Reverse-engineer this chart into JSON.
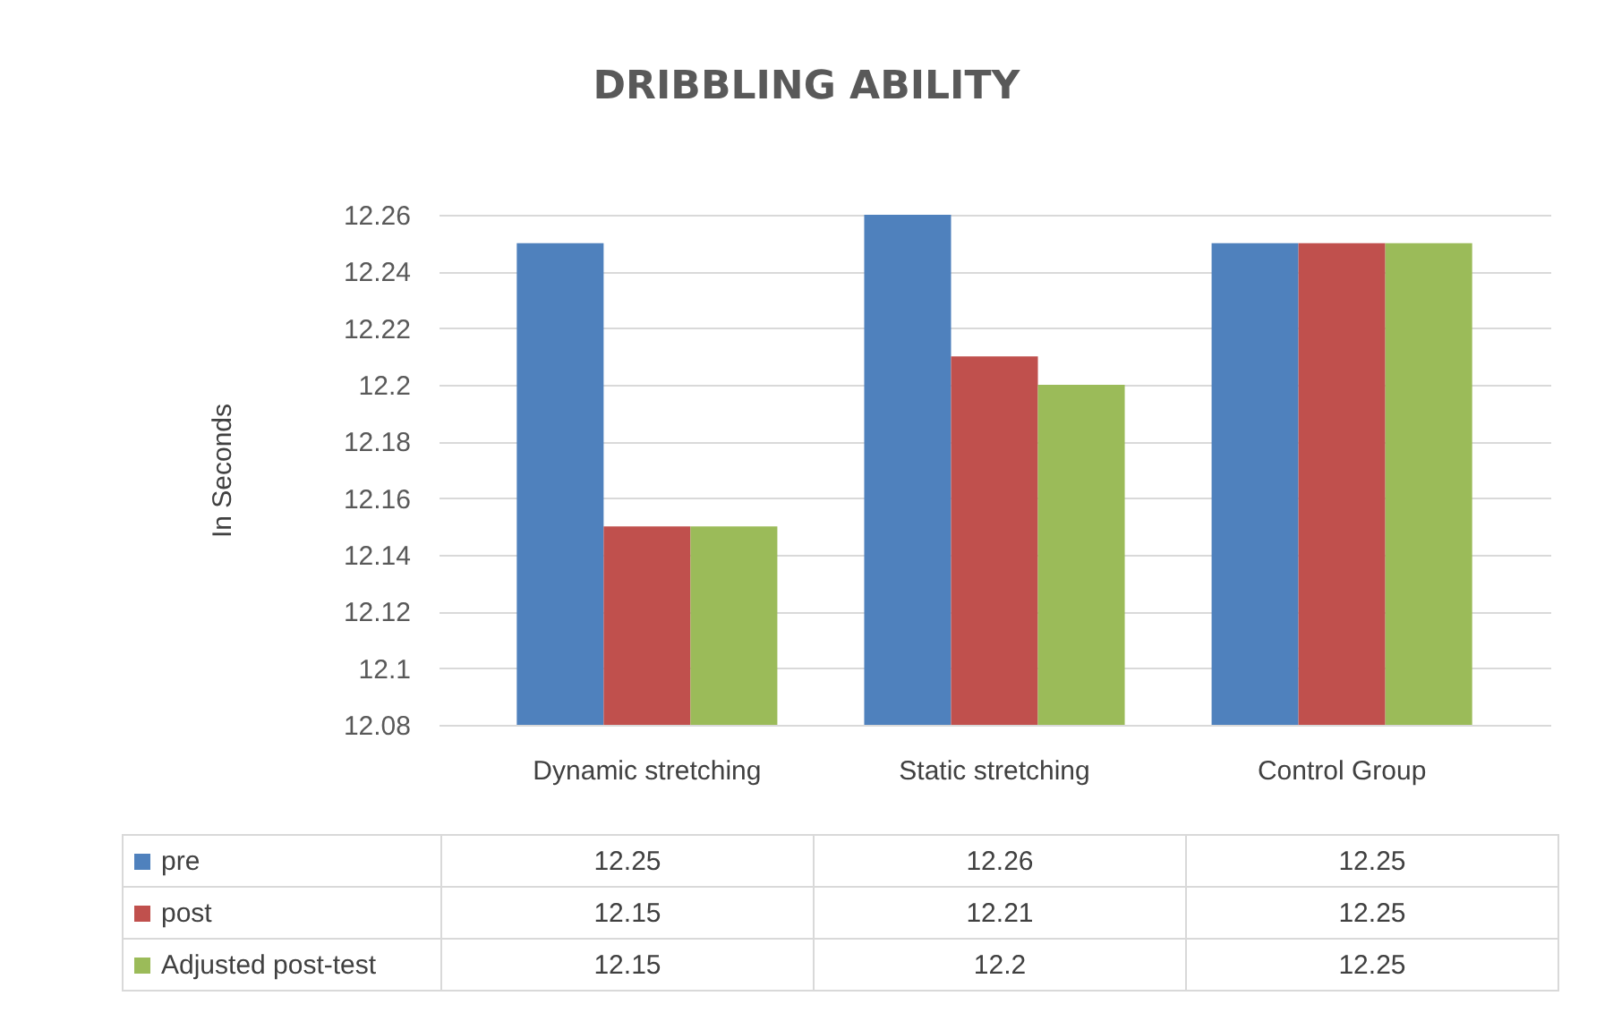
{
  "chart_data": {
    "type": "bar",
    "title": "DRIBBLING ABILITY",
    "ylabel": "In Seconds",
    "categories": [
      "Dynamic stretching",
      "Static stretching",
      "Control Group"
    ],
    "series": [
      {
        "name": "pre",
        "color": "#4f81bd",
        "values": [
          12.25,
          12.26,
          12.25
        ]
      },
      {
        "name": "post",
        "color": "#c0504d",
        "values": [
          12.15,
          12.21,
          12.25
        ]
      },
      {
        "name": "Adjusted post-test",
        "color": "#9bbb59",
        "values": [
          12.15,
          12.2,
          12.25
        ]
      }
    ],
    "ylim": [
      12.08,
      12.26
    ],
    "yticks": [
      12.08,
      12.1,
      12.12,
      12.14,
      12.16,
      12.18,
      12.2,
      12.22,
      12.24,
      12.26
    ],
    "grid": "y",
    "legend": "bottom",
    "data_labels": true
  }
}
